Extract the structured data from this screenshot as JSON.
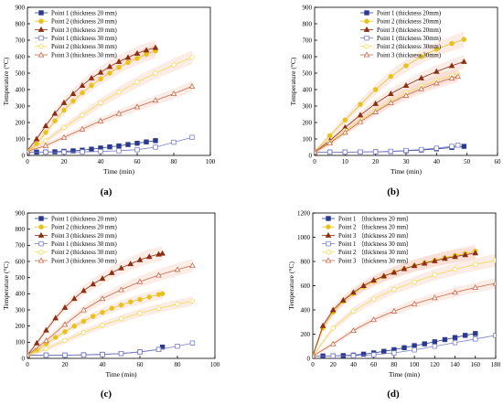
{
  "figure": {
    "panel_letters": [
      "(a)",
      "(b)",
      "(c)",
      "(d)"
    ]
  },
  "colors": {
    "point1": "#2b3a8f",
    "point2": "#e8c21a",
    "point3": "#8b2e12",
    "point1_30": "#7b7fc4",
    "point2_30": "#f2dc55",
    "point3_30": "#c46a4a",
    "band": "#f7c9b8"
  },
  "chart_data": [
    {
      "panel": "(a)",
      "type": "line",
      "xlabel": "Time (min)",
      "ylabel": "Temperature (°C)",
      "xlim": [
        0,
        100
      ],
      "ylim": [
        0,
        900
      ],
      "xticks": [
        0,
        20,
        40,
        60,
        80,
        100
      ],
      "yticks": [
        0,
        100,
        200,
        300,
        400,
        500,
        600,
        700,
        800,
        900
      ],
      "legend": "top-left",
      "series": [
        {
          "name": "Point 1 (thickness 20 mm)",
          "marker": "square",
          "filled": true,
          "color_key": "point1",
          "x": [
            0,
            5,
            10,
            15,
            20,
            25,
            30,
            35,
            40,
            45,
            50,
            55,
            60,
            65,
            70
          ],
          "y": [
            20,
            20,
            21,
            22,
            25,
            28,
            32,
            38,
            45,
            52,
            58,
            66,
            74,
            82,
            90
          ]
        },
        {
          "name": "Point 2 (thickness 20 mm)",
          "marker": "circle",
          "filled": true,
          "color_key": "point2",
          "x": [
            0,
            5,
            10,
            15,
            20,
            25,
            30,
            35,
            40,
            45,
            50,
            55,
            60,
            65,
            70
          ],
          "y": [
            25,
            70,
            140,
            210,
            275,
            330,
            380,
            425,
            465,
            500,
            535,
            565,
            590,
            615,
            635
          ]
        },
        {
          "name": "Point 3 (thickness 20 mm)",
          "marker": "triangle",
          "filled": true,
          "color_key": "point3",
          "x": [
            0,
            5,
            10,
            15,
            20,
            25,
            30,
            35,
            40,
            45,
            50,
            55,
            60,
            65,
            70
          ],
          "y": [
            30,
            100,
            180,
            255,
            320,
            375,
            425,
            470,
            505,
            540,
            570,
            595,
            620,
            640,
            655
          ]
        },
        {
          "name": "Point 1 (thickness 30 mm)",
          "marker": "square",
          "filled": false,
          "color_key": "point1_30",
          "x": [
            0,
            10,
            20,
            30,
            40,
            50,
            60,
            70,
            80,
            90
          ],
          "y": [
            20,
            20,
            20,
            22,
            24,
            28,
            35,
            50,
            80,
            110
          ]
        },
        {
          "name": "Point 2 (thickness 30 mm)",
          "marker": "circle",
          "filled": false,
          "color_key": "point2_30",
          "x": [
            0,
            10,
            20,
            30,
            40,
            50,
            60,
            70,
            80,
            90
          ],
          "y": [
            25,
            90,
            170,
            245,
            320,
            385,
            445,
            500,
            550,
            595
          ]
        },
        {
          "name": "Point 3 (thickness 30 mm)",
          "marker": "triangle",
          "filled": false,
          "color_key": "point3_30",
          "x": [
            0,
            10,
            20,
            30,
            40,
            50,
            60,
            70,
            80,
            90
          ],
          "y": [
            25,
            60,
            110,
            160,
            210,
            255,
            295,
            335,
            375,
            420
          ]
        }
      ]
    },
    {
      "panel": "(b)",
      "type": "line",
      "xlabel": "Time (min)",
      "ylabel": "Temperature (°C)",
      "xlim": [
        0,
        60
      ],
      "ylim": [
        0,
        900
      ],
      "xticks": [
        0,
        10,
        20,
        30,
        40,
        50,
        60
      ],
      "yticks": [
        0,
        100,
        200,
        300,
        400,
        500,
        600,
        700,
        800,
        900
      ],
      "legend": "top-right",
      "series": [
        {
          "name": "Point 1 (thickness 20mm)",
          "marker": "square",
          "filled": true,
          "color_key": "point1",
          "x": [
            0,
            5,
            10,
            15,
            20,
            25,
            30,
            35,
            40,
            45,
            49
          ],
          "y": [
            20,
            20,
            20,
            21,
            22,
            24,
            28,
            33,
            40,
            48,
            55
          ]
        },
        {
          "name": "Point 2 (thickness 20mm)",
          "marker": "circle",
          "filled": true,
          "color_key": "point2",
          "x": [
            0,
            5,
            10,
            15,
            20,
            25,
            30,
            35,
            40,
            45,
            49
          ],
          "y": [
            20,
            120,
            215,
            310,
            400,
            480,
            545,
            600,
            645,
            680,
            705
          ]
        },
        {
          "name": "Point 3 (thickness 20mm)",
          "marker": "triangle",
          "filled": true,
          "color_key": "point3",
          "x": [
            0,
            5,
            10,
            15,
            20,
            25,
            30,
            35,
            40,
            45,
            49
          ],
          "y": [
            20,
            90,
            170,
            245,
            315,
            375,
            425,
            470,
            510,
            545,
            570
          ]
        },
        {
          "name": "Point 1 (thickness 30mm)",
          "marker": "square",
          "filled": false,
          "color_key": "point1_30",
          "x": [
            0,
            5,
            10,
            15,
            20,
            25,
            30,
            35,
            40,
            45,
            47
          ],
          "y": [
            20,
            20,
            20,
            21,
            22,
            25,
            30,
            36,
            44,
            55,
            62
          ]
        },
        {
          "name": "Point 2 (thickness 30mm)",
          "marker": "circle",
          "filled": false,
          "color_key": "point2_30",
          "x": [
            0,
            5,
            10,
            15,
            20,
            25,
            30,
            35,
            40,
            45,
            47
          ],
          "y": [
            20,
            80,
            150,
            215,
            275,
            330,
            380,
            420,
            455,
            485,
            495
          ]
        },
        {
          "name": "Point 3 (thickness 30mm)",
          "marker": "triangle",
          "filled": false,
          "color_key": "point3_30",
          "x": [
            0,
            5,
            10,
            15,
            20,
            25,
            30,
            35,
            40,
            45,
            47
          ],
          "y": [
            20,
            75,
            140,
            205,
            265,
            320,
            365,
            405,
            440,
            470,
            480
          ]
        }
      ]
    },
    {
      "panel": "(c)",
      "type": "line",
      "xlabel": "Time (min)",
      "ylabel": "Temperature (°C)",
      "xlim": [
        0,
        100
      ],
      "ylim": [
        0,
        900
      ],
      "xticks": [
        0,
        20,
        40,
        60,
        80,
        100
      ],
      "yticks": [
        0,
        100,
        200,
        300,
        400,
        500,
        600,
        700,
        800,
        900
      ],
      "legend": "top-left",
      "series": [
        {
          "name": "Point 1 (thickness 20 mm)",
          "marker": "square",
          "filled": true,
          "color_key": "point1",
          "x": [
            0,
            10,
            20,
            30,
            40,
            50,
            60,
            70,
            72
          ],
          "y": [
            20,
            20,
            20,
            22,
            25,
            30,
            40,
            55,
            70
          ]
        },
        {
          "name": "Point 2 (thickness 20 mm)",
          "marker": "circle",
          "filled": true,
          "color_key": "point2",
          "x": [
            0,
            5,
            10,
            15,
            20,
            25,
            30,
            35,
            40,
            45,
            50,
            55,
            60,
            65,
            70,
            72
          ],
          "y": [
            20,
            50,
            90,
            130,
            165,
            200,
            230,
            260,
            285,
            310,
            330,
            350,
            365,
            380,
            395,
            400
          ]
        },
        {
          "name": "Point 3 (thickness 20 mm)",
          "marker": "triangle",
          "filled": true,
          "color_key": "point3",
          "x": [
            0,
            5,
            10,
            15,
            20,
            25,
            30,
            35,
            40,
            45,
            50,
            55,
            60,
            65,
            70,
            72
          ],
          "y": [
            20,
            95,
            175,
            250,
            315,
            370,
            420,
            460,
            495,
            530,
            560,
            585,
            610,
            630,
            645,
            650
          ]
        },
        {
          "name": "Point 1 (thickness 30 mm)",
          "marker": "square",
          "filled": false,
          "color_key": "point1_30",
          "x": [
            0,
            10,
            20,
            30,
            40,
            50,
            60,
            70,
            80,
            88
          ],
          "y": [
            20,
            20,
            20,
            21,
            24,
            30,
            40,
            55,
            75,
            95
          ]
        },
        {
          "name": "Point 2 (thickness 30 mm)",
          "marker": "circle",
          "filled": false,
          "color_key": "point2_30",
          "x": [
            0,
            10,
            20,
            30,
            40,
            50,
            60,
            70,
            80,
            88
          ],
          "y": [
            20,
            60,
            110,
            160,
            205,
            245,
            280,
            310,
            335,
            355
          ]
        },
        {
          "name": "Point 3 (thickness 30 mm)",
          "marker": "triangle",
          "filled": false,
          "color_key": "point3_30",
          "x": [
            0,
            10,
            20,
            30,
            40,
            50,
            60,
            70,
            80,
            88
          ],
          "y": [
            20,
            110,
            210,
            300,
            370,
            425,
            475,
            515,
            550,
            575
          ]
        }
      ]
    },
    {
      "panel": "(d)",
      "type": "line",
      "xlabel": "Time (min)",
      "ylabel": "Temperature (°C)",
      "xlim": [
        0,
        180
      ],
      "ylim": [
        0,
        1200
      ],
      "xticks": [
        0,
        20,
        40,
        60,
        80,
        100,
        120,
        140,
        160,
        180
      ],
      "yticks": [
        0,
        200,
        400,
        600,
        800,
        1000,
        1200
      ],
      "legend": "top-left",
      "series": [
        {
          "name": "Point 1  （thickness 20 mm）",
          "marker": "square",
          "filled": true,
          "color_key": "point1",
          "x": [
            0,
            10,
            20,
            30,
            40,
            50,
            60,
            70,
            80,
            90,
            100,
            110,
            120,
            130,
            140,
            150,
            160
          ],
          "y": [
            20,
            20,
            21,
            23,
            27,
            35,
            45,
            58,
            72,
            88,
            105,
            120,
            137,
            155,
            172,
            190,
            205
          ]
        },
        {
          "name": "Point 2  （thickness 20 mm）",
          "marker": "circle",
          "filled": true,
          "color_key": "point2",
          "x": [
            0,
            10,
            20,
            30,
            40,
            50,
            60,
            70,
            80,
            90,
            100,
            110,
            120,
            130,
            140,
            150,
            160
          ],
          "y": [
            20,
            250,
            380,
            470,
            535,
            590,
            635,
            675,
            710,
            740,
            765,
            790,
            810,
            830,
            850,
            865,
            885
          ]
        },
        {
          "name": "Point 3  （thickness 20 mm）",
          "marker": "triangle",
          "filled": true,
          "color_key": "point3",
          "x": [
            0,
            10,
            20,
            30,
            40,
            50,
            60,
            70,
            80,
            90,
            100,
            110,
            120,
            130,
            140,
            150,
            160
          ],
          "y": [
            20,
            270,
            400,
            480,
            545,
            600,
            645,
            680,
            710,
            740,
            765,
            785,
            805,
            825,
            840,
            855,
            870
          ]
        },
        {
          "name": "Point 1  （thickness 30 mm）",
          "marker": "square",
          "filled": false,
          "color_key": "point1_30",
          "x": [
            0,
            20,
            40,
            60,
            80,
            100,
            120,
            140,
            160,
            180
          ],
          "y": [
            20,
            20,
            22,
            30,
            45,
            70,
            100,
            130,
            160,
            190
          ]
        },
        {
          "name": "Point 2  （thickness 30 mm）",
          "marker": "circle",
          "filled": false,
          "color_key": "point2_30",
          "x": [
            0,
            20,
            40,
            60,
            80,
            100,
            120,
            140,
            160,
            180
          ],
          "y": [
            20,
            250,
            390,
            490,
            570,
            630,
            690,
            735,
            775,
            810
          ]
        },
        {
          "name": "Point 3  （thickness 30 mm）",
          "marker": "triangle",
          "filled": false,
          "color_key": "point3_30",
          "x": [
            0,
            20,
            40,
            60,
            80,
            100,
            120,
            140,
            160,
            180
          ],
          "y": [
            20,
            120,
            230,
            320,
            390,
            450,
            500,
            545,
            585,
            620
          ]
        }
      ]
    }
  ]
}
